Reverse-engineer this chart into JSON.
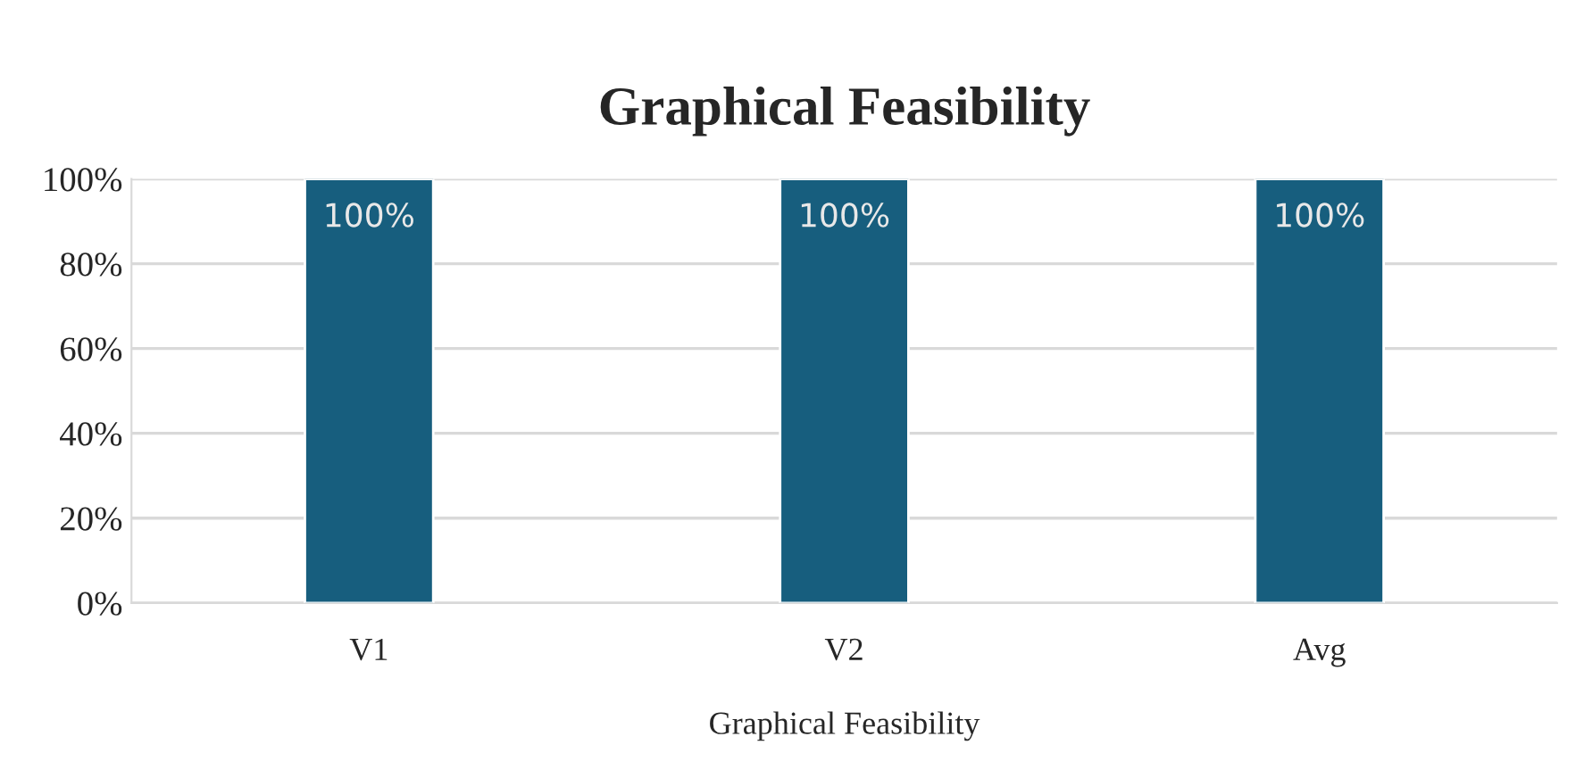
{
  "chart_data": {
    "type": "bar",
    "title": "Graphical Feasibility",
    "xlabel": "Graphical Feasibility",
    "categories": [
      "V1",
      "V2",
      "Avg"
    ],
    "series": [
      {
        "color": "#175e7e",
        "values": [
          100,
          100,
          100
        ]
      }
    ],
    "value_labels": [
      "100%",
      "100%",
      "100%"
    ],
    "ylim": [
      0,
      100
    ],
    "yticks": [
      {
        "value": 0,
        "label": "0%"
      },
      {
        "value": 20,
        "label": "20%"
      },
      {
        "value": 40,
        "label": "40%"
      },
      {
        "value": 60,
        "label": "60%"
      },
      {
        "value": 80,
        "label": "80%"
      },
      {
        "value": 100,
        "label": "100%"
      }
    ],
    "grid": "y",
    "legend": false
  }
}
